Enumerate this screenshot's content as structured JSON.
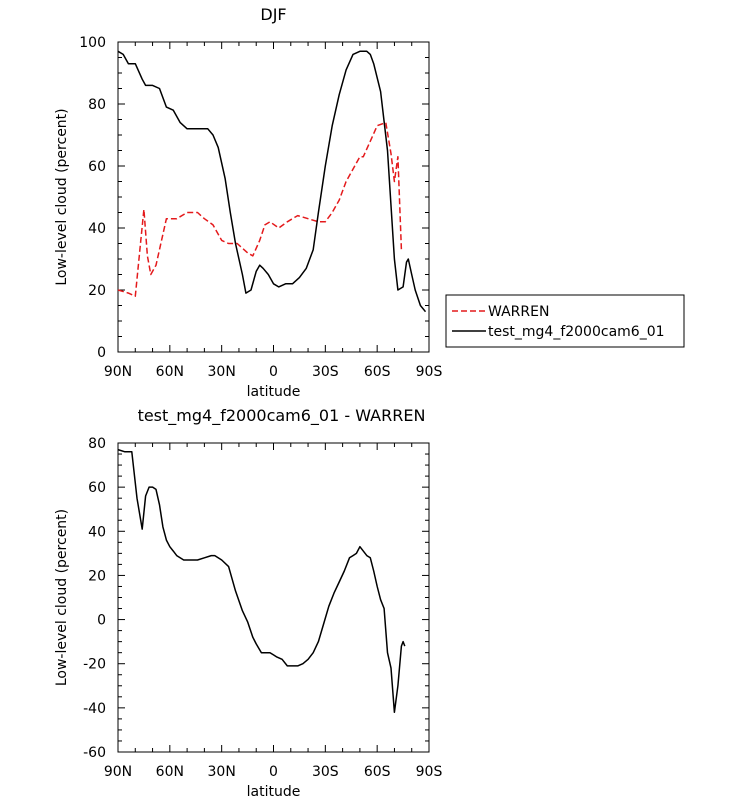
{
  "chart_data": [
    {
      "type": "line",
      "title": "DJF",
      "xlabel": "latitude",
      "ylabel": "Low-level cloud (percent)",
      "xlim": [
        90,
        -90
      ],
      "ylim": [
        0,
        100
      ],
      "x_ticks": [
        "90N",
        "60N",
        "30N",
        "0",
        "30S",
        "60S",
        "90S"
      ],
      "y_ticks": [
        "0",
        "20",
        "40",
        "60",
        "80",
        "100"
      ],
      "legend_position": "right",
      "series": [
        {
          "name": "WARREN",
          "color": "#e41a1c",
          "dash": "dashed",
          "x": [
            90,
            84,
            80,
            77,
            75,
            73,
            71,
            68,
            62,
            56,
            50,
            44,
            40,
            35,
            30,
            26,
            21,
            15,
            12,
            8,
            5,
            2,
            -3,
            -8,
            -14,
            -20,
            -26,
            -30,
            -34,
            -38,
            -42,
            -46,
            -50,
            -52,
            -56,
            -60,
            -65,
            -68,
            -70,
            -72,
            -74
          ],
          "y": [
            20,
            19,
            18,
            35,
            46,
            31,
            25,
            28,
            43,
            43,
            45,
            45,
            43,
            41,
            36,
            35,
            35,
            32,
            31,
            36,
            41,
            42,
            40,
            42,
            44,
            43,
            42,
            42,
            45,
            49,
            55,
            59,
            63,
            63,
            68,
            73,
            74,
            64,
            55,
            63,
            33
          ]
        },
        {
          "name": "test_mg4_f2000cam6_01",
          "color": "#000000",
          "dash": "solid",
          "x": [
            90,
            87,
            84,
            80,
            76,
            74,
            70,
            66,
            62,
            58,
            54,
            50,
            46,
            42,
            38,
            35,
            32,
            28,
            25,
            22,
            18,
            16,
            13,
            10,
            8,
            6,
            3,
            0,
            -3,
            -7,
            -11,
            -15,
            -19,
            -23,
            -26,
            -30,
            -34,
            -38,
            -42,
            -46,
            -50,
            -52,
            -54,
            -56,
            -58,
            -62,
            -66,
            -70,
            -72,
            -75,
            -76,
            -77,
            -78,
            -80,
            -82,
            -85,
            -88
          ],
          "y": [
            97,
            96,
            93,
            93,
            88,
            86,
            86,
            85,
            79,
            78,
            74,
            72,
            72,
            72,
            72,
            70,
            66,
            56,
            45,
            35,
            25,
            19,
            20,
            26,
            28,
            27,
            25,
            22,
            21,
            22,
            22,
            24,
            27,
            33,
            45,
            60,
            73,
            83,
            91,
            96,
            97,
            97,
            97,
            96,
            93,
            84,
            65,
            30,
            20,
            21,
            25,
            29,
            30,
            25,
            20,
            15,
            13
          ]
        }
      ]
    },
    {
      "type": "line",
      "title": "test_mg4_f2000cam6_01 - WARREN",
      "xlabel": "latitude",
      "ylabel": "Low-level cloud (percent)",
      "xlim": [
        90,
        -90
      ],
      "ylim": [
        -60,
        80
      ],
      "x_ticks": [
        "90N",
        "60N",
        "30N",
        "0",
        "30S",
        "60S",
        "90S"
      ],
      "y_ticks": [
        "-60",
        "-40",
        "-20",
        "0",
        "20",
        "40",
        "60",
        "80"
      ],
      "series": [
        {
          "color": "#000000",
          "dash": "solid",
          "x": [
            90,
            86,
            84,
            82,
            79,
            76,
            74,
            72,
            70,
            68,
            66,
            64,
            62,
            60,
            58,
            56,
            52,
            48,
            44,
            40,
            36,
            34,
            30,
            26,
            22,
            18,
            15,
            12,
            10,
            7,
            4,
            2,
            0,
            -2,
            -5,
            -8,
            -11,
            -14,
            -17,
            -20,
            -23,
            -26,
            -29,
            -32,
            -35,
            -38,
            -41,
            -44,
            -46,
            -48,
            -50,
            -52,
            -54,
            -56,
            -58,
            -60,
            -62,
            -64,
            -66,
            -68,
            -70,
            -72,
            -74,
            -75,
            -76
          ],
          "y": [
            77,
            76,
            76,
            76,
            55,
            41,
            56,
            60,
            60,
            59,
            52,
            42,
            36,
            33,
            31,
            29,
            27,
            27,
            27,
            28,
            29,
            29,
            27,
            24,
            13,
            4,
            -1,
            -8,
            -11,
            -15,
            -15,
            -15,
            -16,
            -17,
            -18,
            -21,
            -21,
            -21,
            -20,
            -18,
            -15,
            -10,
            -2,
            6,
            12,
            17,
            22,
            28,
            29,
            30,
            33,
            31,
            29,
            28,
            22,
            15,
            9,
            5,
            -15,
            -22,
            -42,
            -30,
            -12,
            -10,
            -12
          ]
        }
      ]
    }
  ]
}
